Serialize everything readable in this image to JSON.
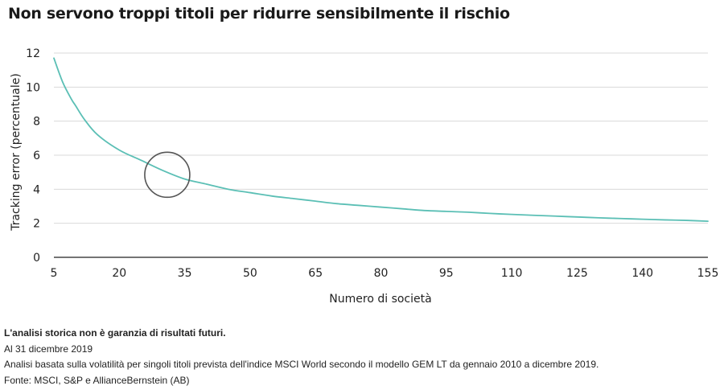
{
  "chart_data": {
    "type": "line",
    "title": "Non servono troppi titoli per ridurre sensibilmente il rischio",
    "xlabel": "Numero di società",
    "ylabel": "Tracking error (percentuale)",
    "xlim": [
      5,
      155
    ],
    "ylim": [
      0,
      12
    ],
    "x_ticks": [
      5,
      20,
      35,
      50,
      65,
      80,
      95,
      110,
      125,
      140,
      155
    ],
    "y_ticks": [
      0,
      2,
      4,
      6,
      8,
      10,
      12
    ],
    "grid": "horizontal",
    "legend": "none",
    "series": [
      {
        "color": "#5bbfb5",
        "x": [
          5,
          7,
          9,
          10,
          12,
          15,
          20,
          25,
          30,
          35,
          40,
          45,
          50,
          55,
          60,
          65,
          70,
          75,
          80,
          85,
          90,
          95,
          100,
          105,
          110,
          115,
          120,
          125,
          130,
          135,
          140,
          145,
          150,
          155
        ],
        "y": [
          11.7,
          10.3,
          9.3,
          8.9,
          8.1,
          7.2,
          6.3,
          5.7,
          5.1,
          4.6,
          4.3,
          4.0,
          3.8,
          3.6,
          3.45,
          3.3,
          3.15,
          3.05,
          2.95,
          2.85,
          2.75,
          2.7,
          2.65,
          2.58,
          2.52,
          2.47,
          2.42,
          2.37,
          2.32,
          2.28,
          2.24,
          2.2,
          2.17,
          2.12
        ]
      }
    ],
    "annotations": [
      {
        "type": "circle",
        "x": 31,
        "y": 4.85
      }
    ]
  },
  "footnotes": {
    "disclaimer": "L'analisi storica non è garanzia di risultati futuri.",
    "date": "Al 31 dicembre 2019",
    "analysis": "Analisi basata sulla volatilità per singoli titoli prevista dell'indice MSCI World secondo il modello GEM LT da gennaio 2010 a dicembre 2019.",
    "source": "Fonte: MSCI, S&P e AllianceBernstein (AB)"
  },
  "colors": {
    "line": "#5bbfb5",
    "grid": "#d9d9d9",
    "axis": "#222222",
    "annotation": "#555555"
  }
}
